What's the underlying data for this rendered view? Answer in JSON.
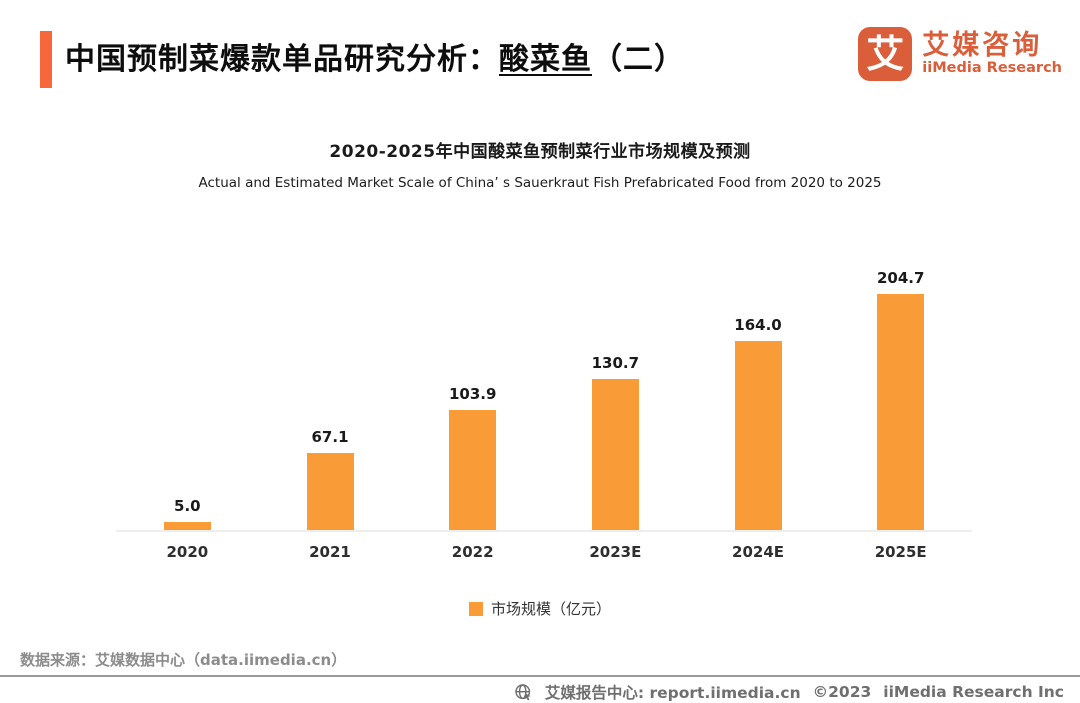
{
  "header": {
    "title_prefix": "中国预制菜爆款单品研究分析：",
    "title_highlight": "酸菜鱼",
    "title_suffix": "（二）",
    "accent_color": "#F7673B"
  },
  "logo": {
    "mark_char": "艾",
    "cn_name": "艾媒咨询",
    "en_name": "iiMedia Research",
    "color": "#DB5E3B"
  },
  "chart_data": {
    "type": "bar",
    "title": "2020-2025年中国酸菜鱼预制菜行业市场规模及预测",
    "subtitle": "Actual and Estimated Market Scale of China’ s Sauerkraut Fish Prefabricated Food from 2020 to 2025",
    "categories": [
      "2020",
      "2021",
      "2022",
      "2023E",
      "2024E",
      "2025E"
    ],
    "values": [
      5.0,
      67.1,
      103.9,
      130.7,
      164.0,
      204.7
    ],
    "value_labels": [
      "5.0",
      "67.1",
      "103.9",
      "130.7",
      "164.0",
      "204.7"
    ],
    "ylabel": "市场规模（亿元）",
    "ylim": [
      0,
      220
    ],
    "grid": false,
    "bar_color": "#F99C38",
    "legend_position": "bottom",
    "legend": [
      {
        "label": "市场规模（亿元）",
        "color": "#F99C38"
      }
    ]
  },
  "footer": {
    "source": "数据来源：艾媒数据中心（data.iimedia.cn）",
    "report_center": "艾媒报告中心:  report.iimedia.cn",
    "copyright": "©2023",
    "company": "iiMedia Research  Inc"
  }
}
